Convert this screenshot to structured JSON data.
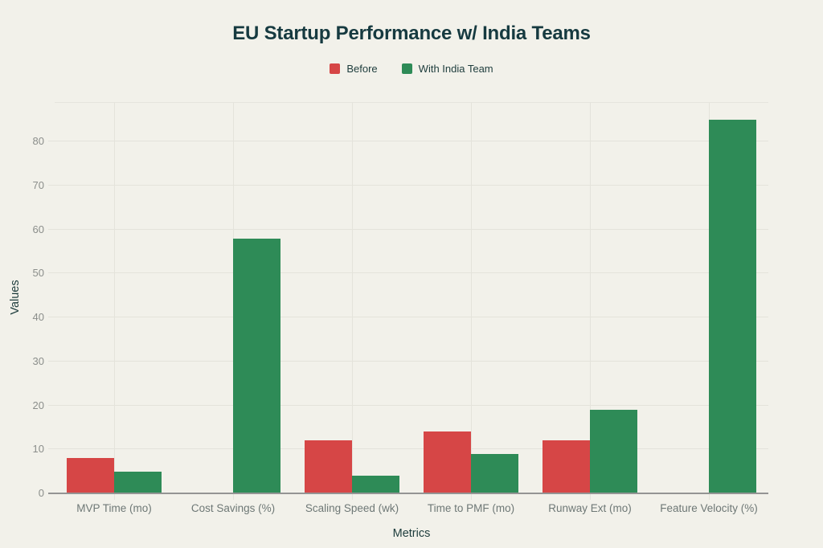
{
  "page": {
    "background_color": "#f2f1ea",
    "text_color_dark": "#163a40",
    "tick_color": "#8b8e8b",
    "category_label_color": "#6e7876",
    "gridline_color": "#e4e3db",
    "baseline_color": "#949494"
  },
  "chart_data": {
    "type": "bar",
    "title": "EU Startup Performance w/ India Teams",
    "xlabel": "Metrics",
    "ylabel": "Values",
    "categories": [
      "MVP Time (mo)",
      "Cost Savings (%)",
      "Scaling Speed (wk)",
      "Time to PMF (mo)",
      "Runway Ext (mo)",
      "Feature Velocity (%)"
    ],
    "series": [
      {
        "name": "Before",
        "color": "#d64646",
        "values": [
          8,
          0,
          12,
          14,
          12,
          0
        ]
      },
      {
        "name": "With India Team",
        "color": "#2e8b57",
        "values": [
          5,
          58,
          4,
          9,
          19,
          85
        ]
      }
    ],
    "ylim": [
      0,
      89
    ],
    "yticks": [
      0,
      10,
      20,
      30,
      40,
      50,
      60,
      70,
      80
    ],
    "grid": true,
    "legend_position": "top"
  }
}
